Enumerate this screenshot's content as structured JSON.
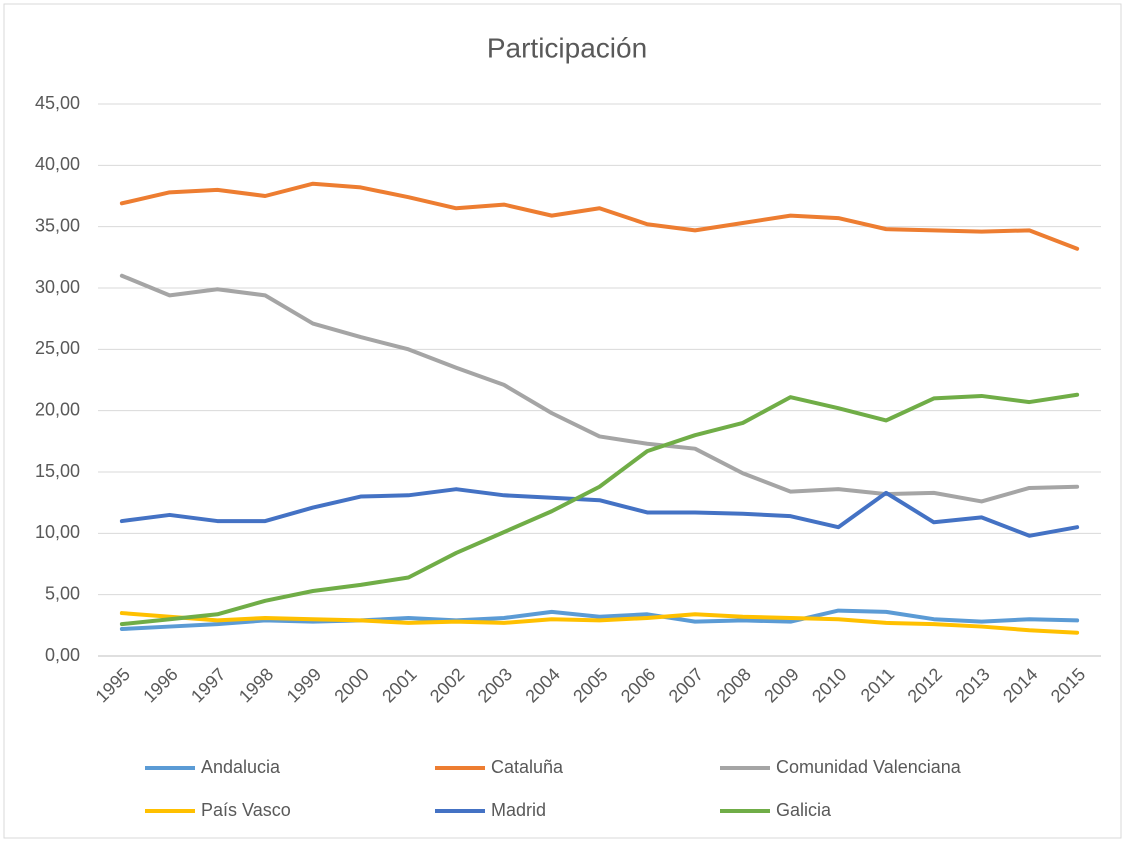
{
  "chart_data": {
    "type": "line",
    "title": "Participación",
    "categories": [
      "1995",
      "1996",
      "1997",
      "1998",
      "1999",
      "2000",
      "2001",
      "2002",
      "2003",
      "2004",
      "2005",
      "2006",
      "2007",
      "2008",
      "2009",
      "2010",
      "2011",
      "2012",
      "2013",
      "2014",
      "2015"
    ],
    "series": [
      {
        "name": "Andalucia",
        "color": "#5b9bd5",
        "values": [
          2.2,
          2.4,
          2.6,
          2.9,
          2.8,
          2.9,
          3.1,
          2.9,
          3.1,
          3.6,
          3.2,
          3.4,
          2.8,
          2.9,
          2.8,
          3.7,
          3.6,
          3.0,
          2.8,
          3.0,
          2.9
        ]
      },
      {
        "name": "Cataluña",
        "color": "#ed7d31",
        "values": [
          36.9,
          37.8,
          38.0,
          37.5,
          38.5,
          38.2,
          37.4,
          36.5,
          36.8,
          35.9,
          36.5,
          35.2,
          34.7,
          35.3,
          35.9,
          35.7,
          34.8,
          34.7,
          34.6,
          34.7,
          33.2
        ]
      },
      {
        "name": "Comunidad Valenciana",
        "color": "#a5a5a5",
        "values": [
          31.0,
          29.4,
          29.9,
          29.4,
          27.1,
          26.0,
          25.0,
          23.5,
          22.1,
          19.8,
          17.9,
          17.3,
          16.9,
          14.9,
          13.4,
          13.6,
          13.2,
          13.3,
          12.6,
          13.7,
          13.8
        ]
      },
      {
        "name": "País Vasco",
        "color": "#ffc000",
        "values": [
          3.5,
          3.2,
          2.9,
          3.1,
          3.0,
          2.9,
          2.7,
          2.8,
          2.7,
          3.0,
          2.9,
          3.1,
          3.4,
          3.2,
          3.1,
          3.0,
          2.7,
          2.6,
          2.4,
          2.1,
          1.9
        ]
      },
      {
        "name": "Madrid",
        "color": "#4472c4",
        "values": [
          11.0,
          11.5,
          11.0,
          11.0,
          12.1,
          13.0,
          13.1,
          13.6,
          13.1,
          12.9,
          12.7,
          11.7,
          11.7,
          11.6,
          11.4,
          10.5,
          13.3,
          10.9,
          11.3,
          9.8,
          10.5
        ]
      },
      {
        "name": "Galicia",
        "color": "#70ad47",
        "values": [
          2.6,
          3.0,
          3.4,
          4.5,
          5.3,
          5.8,
          6.4,
          8.4,
          10.1,
          11.8,
          13.8,
          16.7,
          18.0,
          19.0,
          21.1,
          20.2,
          19.2,
          21.0,
          21.2,
          20.7,
          21.3
        ]
      }
    ],
    "ylim": [
      0,
      45
    ],
    "yticks": [
      {
        "value": 0,
        "label": "0,00"
      },
      {
        "value": 5,
        "label": "5,00"
      },
      {
        "value": 10,
        "label": "10,00"
      },
      {
        "value": 15,
        "label": "15,00"
      },
      {
        "value": 20,
        "label": "20,00"
      },
      {
        "value": 25,
        "label": "25,00"
      },
      {
        "value": 30,
        "label": "30,00"
      },
      {
        "value": 35,
        "label": "35,00"
      },
      {
        "value": 40,
        "label": "40,00"
      },
      {
        "value": 45,
        "label": "45,00"
      }
    ],
    "grid": true,
    "legend": "bottom"
  }
}
